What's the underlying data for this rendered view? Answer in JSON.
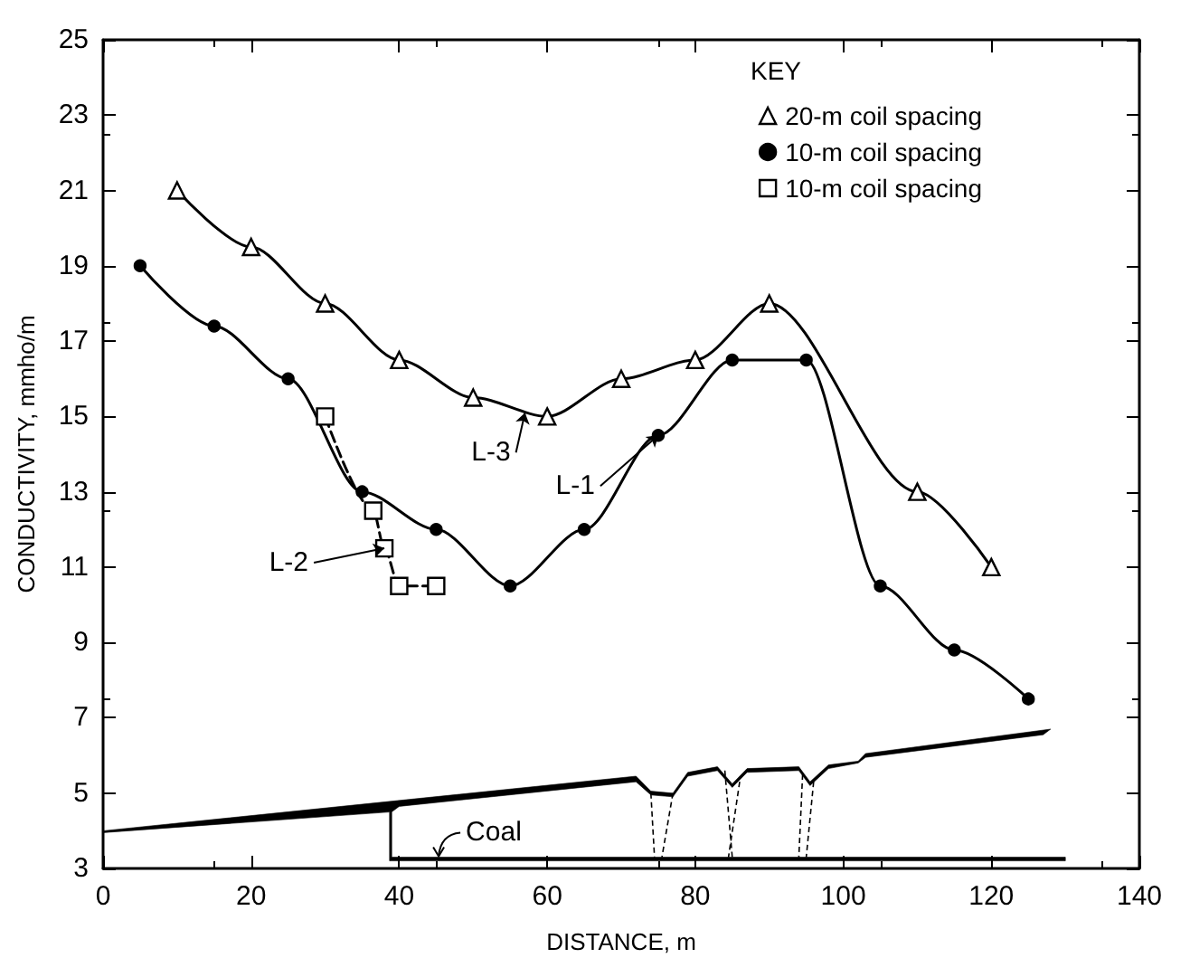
{
  "chart_data": {
    "type": "line",
    "xlabel": "DISTANCE, m",
    "ylabel": "CONDUCTIVITY, mmho/m",
    "legend_title": "KEY",
    "xlim": [
      0,
      140
    ],
    "xticks": [
      0,
      20,
      40,
      60,
      80,
      100,
      120,
      140
    ],
    "ylim": [
      3,
      25
    ],
    "yticks": [
      3,
      5,
      7,
      9,
      11,
      13,
      15,
      17,
      19,
      21,
      23,
      25
    ],
    "grid": false,
    "legend": "top right",
    "series": [
      {
        "name": "20-m coil spacing",
        "color": "#000000",
        "marker": "triangle",
        "line_style": "solid",
        "x": [
          10,
          20,
          30,
          40,
          50,
          60,
          70,
          80,
          90,
          110,
          120
        ],
        "values": [
          21,
          19.5,
          18,
          16.5,
          15.5,
          15,
          16,
          16.5,
          18,
          13,
          11
        ]
      },
      {
        "name": "10-m coil spacing",
        "color": "#000000",
        "marker": "circle",
        "line_style": "solid",
        "x": [
          5,
          15,
          25,
          35,
          45,
          55,
          65,
          75,
          85,
          95,
          105,
          115,
          125
        ],
        "values": [
          19,
          17.4,
          16,
          13,
          12,
          10.5,
          12,
          14.5,
          16.5,
          16.5,
          10.5,
          8.8,
          7.5
        ]
      },
      {
        "name": "10-m coil spacing",
        "color": "#000000",
        "marker": "square",
        "line_style": "dashed",
        "x": [
          30,
          36.5,
          38,
          40,
          45
        ],
        "values": [
          15,
          12.5,
          11.5,
          10.5,
          10.5
        ]
      }
    ],
    "annotations": [
      {
        "text": "L-3",
        "x": 57,
        "y": 15.1
      },
      {
        "text": "L-1",
        "x": 75,
        "y": 14.5
      },
      {
        "text": "L-2",
        "x": 38,
        "y": 11.5
      },
      "Coal"
    ]
  }
}
